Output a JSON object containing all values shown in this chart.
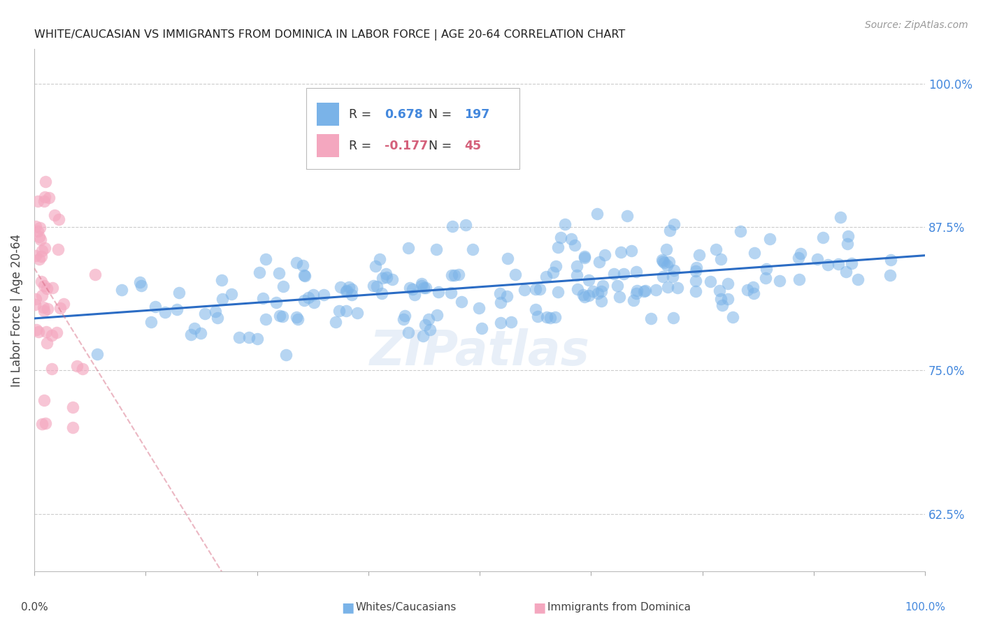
{
  "title": "WHITE/CAUCASIAN VS IMMIGRANTS FROM DOMINICA IN LABOR FORCE | AGE 20-64 CORRELATION CHART",
  "source": "Source: ZipAtlas.com",
  "ylabel": "In Labor Force | Age 20-64",
  "ytick_labels": [
    "100.0%",
    "87.5%",
    "75.0%",
    "62.5%"
  ],
  "ytick_values": [
    1.0,
    0.875,
    0.75,
    0.625
  ],
  "xlim": [
    0.0,
    1.0
  ],
  "ylim": [
    0.575,
    1.03
  ],
  "blue_color": "#7ab3e8",
  "pink_color": "#f4a7bf",
  "blue_line_color": "#2b6cc4",
  "pink_line_color": "#d4607a",
  "legend_r_blue": "0.678",
  "legend_n_blue": "197",
  "legend_r_pink": "-0.177",
  "legend_n_pink": "45",
  "legend_label_blue": "Whites/Caucasians",
  "legend_label_pink": "Immigrants from Dominica",
  "watermark": "ZIPatlas",
  "blue_scatter_seed": 42,
  "pink_scatter_seed": 7,
  "blue_n": 197,
  "pink_n": 45
}
